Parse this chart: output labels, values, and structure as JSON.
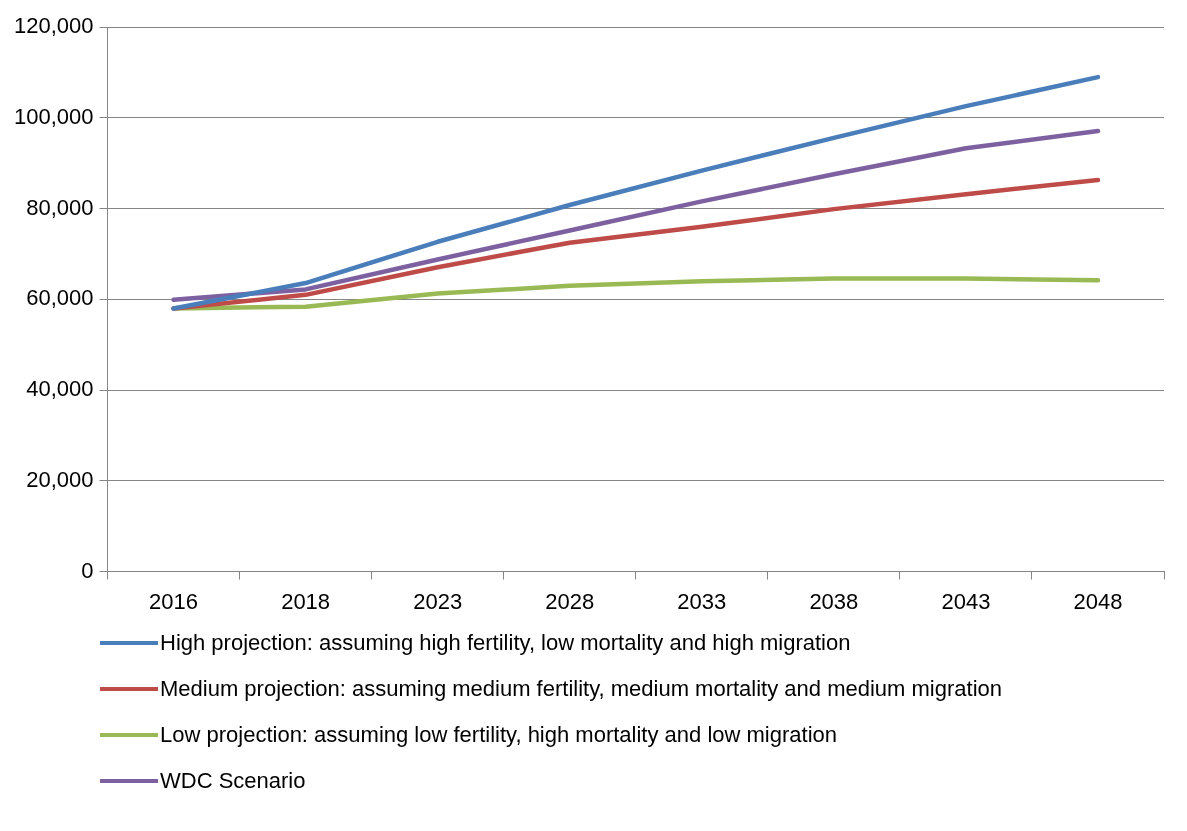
{
  "chart_data": {
    "type": "line",
    "categories": [
      "2016",
      "2018",
      "2023",
      "2028",
      "2033",
      "2038",
      "2043",
      "2048"
    ],
    "series": [
      {
        "name": "High projection: assuming high fertility, low mortality and high migration",
        "color": "#4a7ebb",
        "values": [
          58000,
          63600,
          72700,
          80800,
          88400,
          95600,
          102600,
          109000
        ]
      },
      {
        "name": "Medium projection: assuming medium fertility, medium mortality and medium migration",
        "color": "#be4b48",
        "values": [
          58000,
          61000,
          67100,
          72500,
          76000,
          79900,
          83200,
          86300
        ]
      },
      {
        "name": "Low projection: assuming low fertility, high mortality and low migration",
        "color": "#98b954",
        "values": [
          58000,
          58400,
          61300,
          63000,
          64000,
          64600,
          64600,
          64200
        ]
      },
      {
        "name": "WDC Scenario",
        "color": "#7d60a0",
        "values": [
          59900,
          62200,
          68800,
          75200,
          81600,
          87600,
          93300,
          97100
        ]
      }
    ],
    "ylim": [
      0,
      120000
    ],
    "yticks": [
      0,
      {
        "value": 20000,
        "label": "20,000"
      },
      {
        "value": 40000,
        "label": "40,000"
      },
      {
        "value": 60000,
        "label": "60,000"
      },
      {
        "value": 80000,
        "label": "80,000"
      },
      {
        "value": 100000,
        "label": "100,000"
      },
      {
        "value": 120000,
        "label": "120,000"
      }
    ],
    "grid": "y",
    "legend": "bottom",
    "marker": "none",
    "line_style": "solid"
  }
}
